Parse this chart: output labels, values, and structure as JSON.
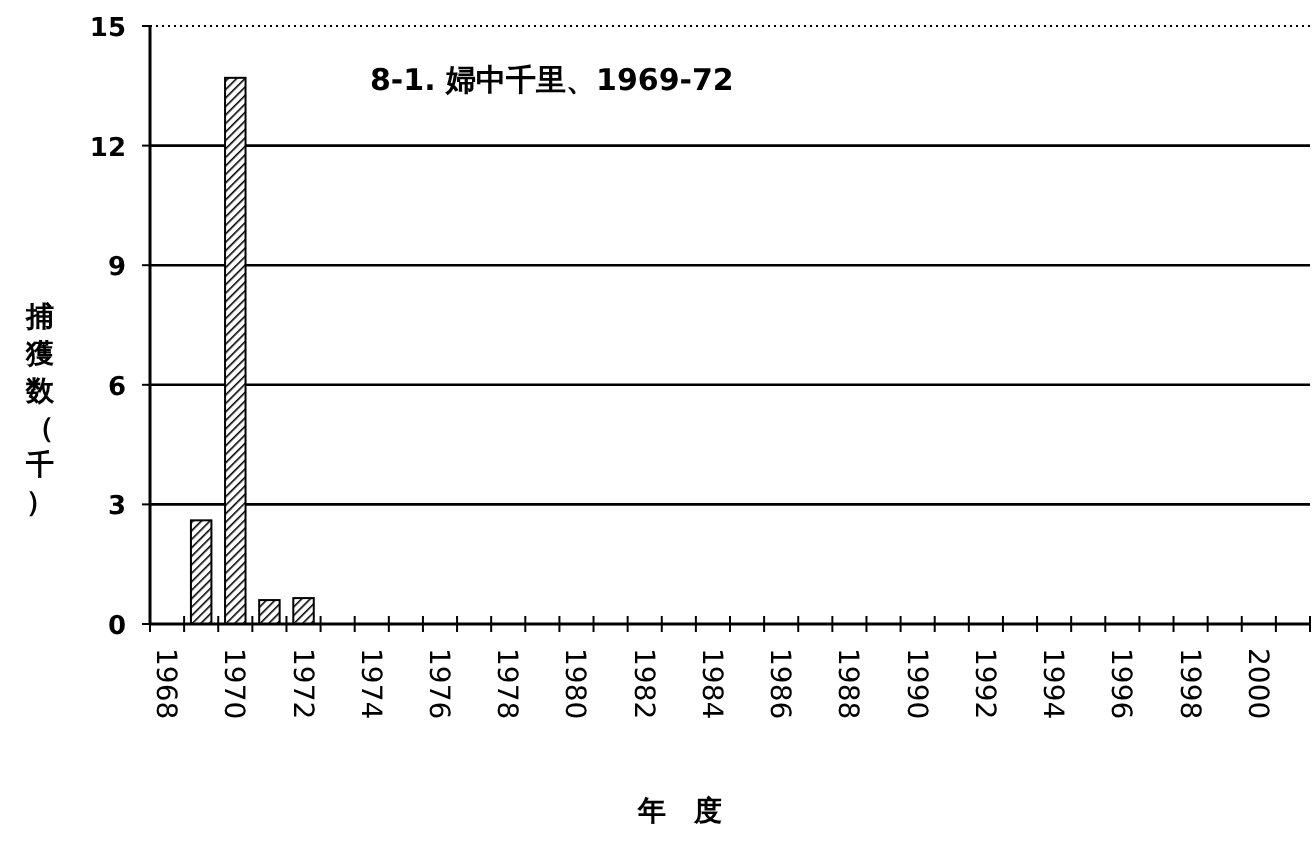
{
  "chart_data": {
    "type": "bar",
    "title": "8-1. 婦中千里、1969-72",
    "xlabel": "年　度",
    "ylabel": "捕獲数（千）",
    "categories": [
      "1968",
      null,
      "1970",
      null,
      "1972",
      null,
      "1974",
      null,
      "1976",
      null,
      "1978",
      null,
      "1980",
      null,
      "1982",
      null,
      "1984",
      null,
      "1986",
      null,
      "1988",
      null,
      "1990",
      null,
      "1992",
      null,
      "1994",
      null,
      "1996",
      null,
      "1998",
      null,
      "2000",
      null
    ],
    "values": [
      null,
      2.6,
      13.7,
      0.6,
      0.65,
      null,
      null,
      null,
      null,
      null,
      null,
      null,
      null,
      null,
      null,
      null,
      null,
      null,
      null,
      null,
      null,
      null,
      null,
      null,
      null,
      null,
      null,
      null,
      null,
      null,
      null,
      null,
      null,
      null
    ],
    "color": "#000000",
    "ylim": [
      0,
      15
    ],
    "yticks": [
      0,
      3,
      6,
      9,
      12,
      15
    ],
    "grid": "y"
  }
}
